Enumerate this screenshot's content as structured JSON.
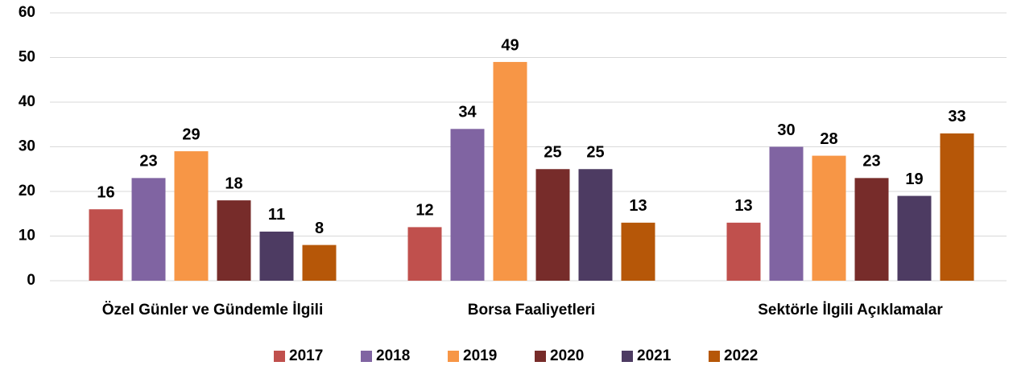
{
  "chart_data": {
    "type": "bar",
    "categories": [
      "Özel Günler ve Gündemle İlgili",
      "Borsa Faaliyetleri",
      "Sektörle İlgili Açıklamalar"
    ],
    "series": [
      {
        "name": "2017",
        "color": "#c0504d",
        "values": [
          16,
          12,
          13
        ]
      },
      {
        "name": "2018",
        "color": "#8064a2",
        "values": [
          23,
          34,
          30
        ]
      },
      {
        "name": "2019",
        "color": "#f79646",
        "values": [
          29,
          49,
          28
        ]
      },
      {
        "name": "2020",
        "color": "#772c2a",
        "values": [
          18,
          25,
          23
        ]
      },
      {
        "name": "2021",
        "color": "#4d3b62",
        "values": [
          11,
          25,
          19
        ]
      },
      {
        "name": "2022",
        "color": "#b65708",
        "values": [
          8,
          13,
          33
        ]
      }
    ],
    "ylim": [
      0,
      60
    ],
    "yticks": [
      0,
      10,
      20,
      30,
      40,
      50,
      60
    ],
    "grid": true,
    "legend": "bottom"
  }
}
